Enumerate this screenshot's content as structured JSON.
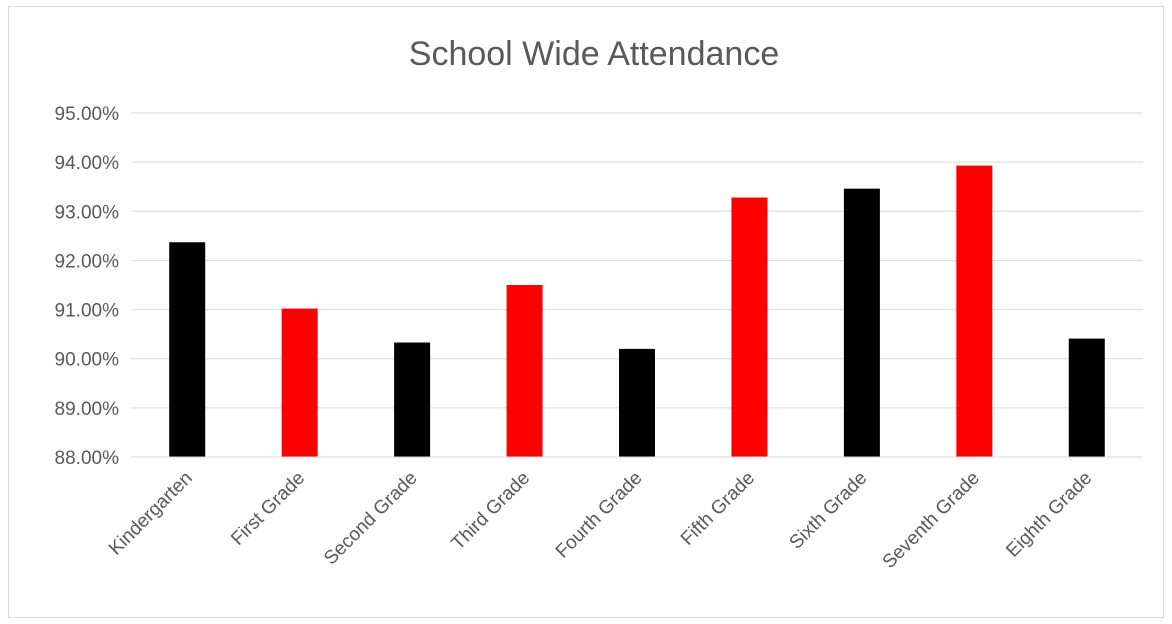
{
  "chart_data": {
    "type": "bar",
    "title": "School Wide Attendance",
    "xlabel": "",
    "ylabel": "",
    "categories": [
      "Kindergarten",
      "First Grade",
      "Second Grade",
      "Third Grade",
      "Fourth Grade",
      "Fifth Grade",
      "Sixth Grade",
      "Seventh Grade",
      "Eighth Grade"
    ],
    "values": [
      92.37,
      91.02,
      90.33,
      91.5,
      90.2,
      93.28,
      93.46,
      93.93,
      90.41
    ],
    "bar_colors": [
      "#000000",
      "#ff0000",
      "#000000",
      "#ff0000",
      "#000000",
      "#ff0000",
      "#000000",
      "#ff0000",
      "#000000"
    ],
    "ylim": [
      88,
      95
    ],
    "yticks": [
      88,
      89,
      90,
      91,
      92,
      93,
      94,
      95
    ],
    "ytick_labels": [
      "88.00%",
      "89.00%",
      "90.00%",
      "91.00%",
      "92.00%",
      "93.00%",
      "94.00%",
      "95.00%"
    ],
    "grid": true,
    "legend": "none"
  }
}
